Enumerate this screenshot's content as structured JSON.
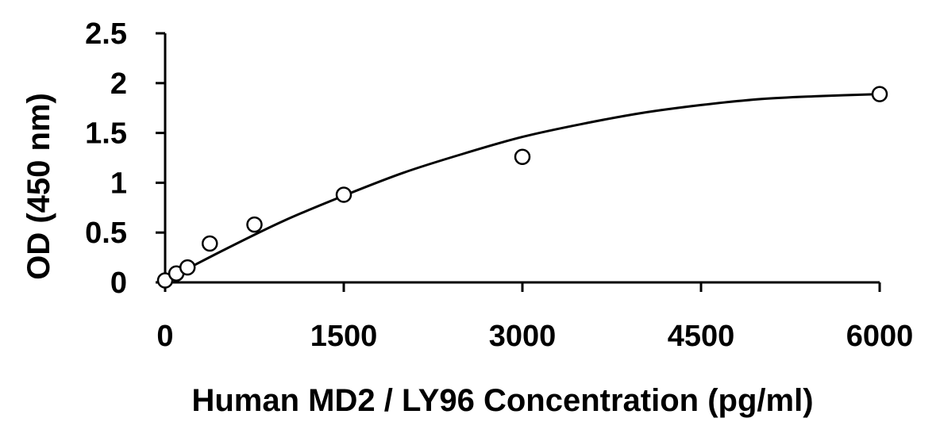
{
  "chart_data": {
    "type": "scatter",
    "title": "",
    "xlabel": "Human MD2 / LY96 Concentration (pg/ml)",
    "ylabel": "OD (450 nm)",
    "xlim": [
      0,
      6000
    ],
    "ylim": [
      0,
      2.5
    ],
    "x_ticks": [
      0,
      1500,
      3000,
      4500,
      6000
    ],
    "x_tick_labels": [
      "0",
      "1500",
      "3000",
      "4500",
      "6000"
    ],
    "y_ticks": [
      0,
      0.5,
      1,
      1.5,
      2,
      2.5
    ],
    "y_tick_labels": [
      "0",
      "0.5",
      "1",
      "1.5",
      "2",
      "2.5"
    ],
    "grid": false,
    "legend": "none",
    "points": [
      {
        "x": 0,
        "y": 0.02
      },
      {
        "x": 94,
        "y": 0.09
      },
      {
        "x": 188,
        "y": 0.15
      },
      {
        "x": 375,
        "y": 0.39
      },
      {
        "x": 750,
        "y": 0.58
      },
      {
        "x": 1500,
        "y": 0.88
      },
      {
        "x": 3000,
        "y": 1.26
      },
      {
        "x": 6000,
        "y": 1.89
      }
    ],
    "fit_curve": {
      "x": [
        0,
        500,
        1000,
        1500,
        2000,
        2500,
        3000,
        3500,
        4000,
        4500,
        5000,
        5500,
        6000
      ],
      "y": [
        0.02,
        0.33,
        0.62,
        0.87,
        1.1,
        1.29,
        1.46,
        1.59,
        1.7,
        1.78,
        1.84,
        1.87,
        1.89
      ]
    },
    "colors": {
      "marker_fill": "#ffffff",
      "marker_stroke": "#000000",
      "line": "#000000",
      "axis": "#000000"
    }
  }
}
